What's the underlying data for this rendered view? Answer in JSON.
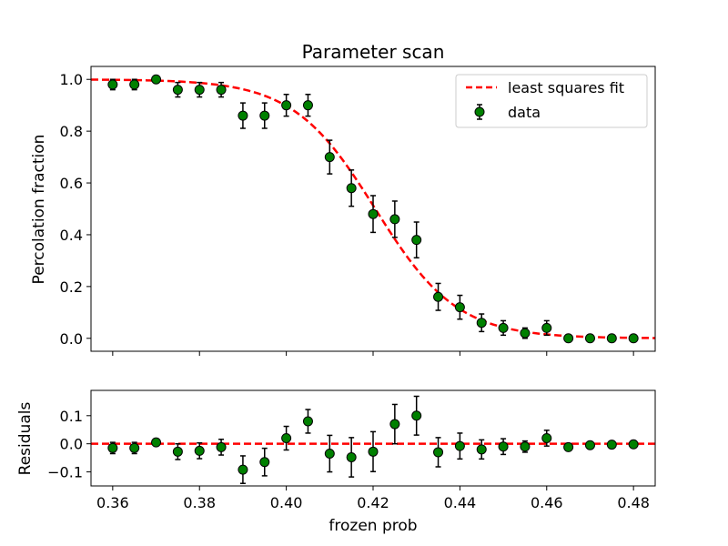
{
  "chart_data": [
    {
      "type": "scatter",
      "title": "Parameter scan",
      "xlabel": "",
      "ylabel": "Percolation fraction",
      "xlim": [
        0.355,
        0.485
      ],
      "ylim": [
        -0.05,
        1.05
      ],
      "x_ticks": [
        0.36,
        0.38,
        0.4,
        0.42,
        0.44,
        0.46,
        0.48
      ],
      "y_ticks": [
        0.0,
        0.2,
        0.4,
        0.6,
        0.8,
        1.0
      ],
      "y_tick_labels": [
        "0.0",
        "0.2",
        "0.4",
        "0.6",
        "0.8",
        "1.0"
      ],
      "grid": false,
      "legend": {
        "position": "upper right",
        "entries": [
          "least squares fit",
          "data"
        ]
      },
      "series": [
        {
          "name": "data",
          "kind": "errorbar",
          "color": "#008000",
          "x": [
            0.36,
            0.365,
            0.37,
            0.375,
            0.38,
            0.385,
            0.39,
            0.395,
            0.4,
            0.405,
            0.41,
            0.415,
            0.42,
            0.425,
            0.43,
            0.435,
            0.44,
            0.445,
            0.45,
            0.455,
            0.46,
            0.465,
            0.47,
            0.475,
            0.48
          ],
          "y": [
            0.98,
            0.98,
            1.0,
            0.96,
            0.96,
            0.96,
            0.86,
            0.86,
            0.9,
            0.9,
            0.7,
            0.58,
            0.48,
            0.46,
            0.38,
            0.16,
            0.12,
            0.06,
            0.04,
            0.02,
            0.04,
            0.0,
            0.0,
            0.0,
            0.0
          ],
          "yerr": [
            0.02,
            0.02,
            0.01,
            0.028,
            0.028,
            0.028,
            0.049,
            0.049,
            0.042,
            0.042,
            0.065,
            0.07,
            0.071,
            0.07,
            0.069,
            0.052,
            0.046,
            0.034,
            0.028,
            0.02,
            0.028,
            0.01,
            0.01,
            0.01,
            0.01
          ]
        },
        {
          "name": "least squares fit",
          "kind": "line",
          "style": "dashed",
          "color": "#ff0000",
          "model": "logistic",
          "midpoint": 0.4205,
          "width": 0.00945
        }
      ]
    },
    {
      "type": "scatter",
      "title": "",
      "xlabel": "frozen prob",
      "ylabel": "Residuals",
      "xlim": [
        0.355,
        0.485
      ],
      "ylim": [
        -0.15,
        0.19
      ],
      "x_ticks": [
        0.36,
        0.38,
        0.4,
        0.42,
        0.44,
        0.46,
        0.48
      ],
      "x_tick_labels": [
        "0.36",
        "0.38",
        "0.40",
        "0.42",
        "0.44",
        "0.46",
        "0.48"
      ],
      "y_ticks": [
        -0.1,
        0.0,
        0.1
      ],
      "y_tick_labels": [
        "−0.1",
        "0.0",
        "0.1"
      ],
      "grid": false,
      "series": [
        {
          "name": "residuals",
          "kind": "errorbar",
          "color": "#008000",
          "x": [
            0.36,
            0.365,
            0.37,
            0.375,
            0.38,
            0.385,
            0.39,
            0.395,
            0.4,
            0.405,
            0.41,
            0.415,
            0.42,
            0.425,
            0.43,
            0.435,
            0.44,
            0.445,
            0.45,
            0.455,
            0.46,
            0.465,
            0.47,
            0.475,
            0.48
          ],
          "y": [
            -0.015,
            -0.015,
            0.005,
            -0.028,
            -0.025,
            -0.012,
            -0.092,
            -0.065,
            0.02,
            0.08,
            -0.035,
            -0.048,
            -0.028,
            0.07,
            0.1,
            -0.03,
            -0.008,
            -0.02,
            -0.01,
            -0.01,
            0.02,
            -0.012,
            -0.005,
            -0.003,
            -0.002
          ],
          "yerr": [
            0.02,
            0.02,
            0.01,
            0.028,
            0.028,
            0.028,
            0.049,
            0.049,
            0.042,
            0.042,
            0.065,
            0.07,
            0.071,
            0.07,
            0.069,
            0.052,
            0.046,
            0.034,
            0.028,
            0.02,
            0.028,
            0.01,
            0.01,
            0.01,
            0.01
          ]
        },
        {
          "name": "zero line",
          "kind": "hline",
          "style": "dashed",
          "color": "#ff0000",
          "y": 0.0
        }
      ]
    }
  ]
}
